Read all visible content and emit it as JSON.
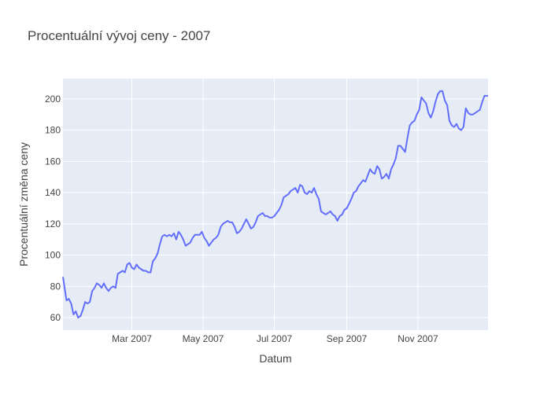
{
  "chart_data": {
    "type": "line",
    "title": "Procentuální vývoj ceny - 2007",
    "xlabel": "Datum",
    "ylabel": "Procentuální změna ceny",
    "xlim": [
      "2007-01-01",
      "2007-12-31"
    ],
    "ylim": [
      52,
      213
    ],
    "grid": true,
    "x_ticks": [
      {
        "date": "2007-03-01",
        "label": "Mar 2007"
      },
      {
        "date": "2007-05-01",
        "label": "May 2007"
      },
      {
        "date": "2007-07-01",
        "label": "Jul 2007"
      },
      {
        "date": "2007-09-01",
        "label": "Sep 2007"
      },
      {
        "date": "2007-11-01",
        "label": "Nov 2007"
      }
    ],
    "y_ticks": [
      60,
      80,
      100,
      120,
      140,
      160,
      180,
      200
    ],
    "line_color": "#636efa",
    "plot_bg": "#e5ecf6",
    "series": [
      {
        "x": [
          "2007-01-01",
          "2007-01-04",
          "2007-01-06",
          "2007-01-08",
          "2007-01-10",
          "2007-01-12",
          "2007-01-14",
          "2007-01-16",
          "2007-01-18",
          "2007-01-20",
          "2007-01-22",
          "2007-01-24",
          "2007-01-26",
          "2007-01-28",
          "2007-01-30",
          "2007-02-01",
          "2007-02-03",
          "2007-02-05",
          "2007-02-07",
          "2007-02-09",
          "2007-02-11",
          "2007-02-13",
          "2007-02-15",
          "2007-02-17",
          "2007-02-19",
          "2007-02-21",
          "2007-02-23",
          "2007-02-25",
          "2007-02-27",
          "2007-03-01",
          "2007-03-03",
          "2007-03-05",
          "2007-03-07",
          "2007-03-09",
          "2007-03-11",
          "2007-03-13",
          "2007-03-15",
          "2007-03-17",
          "2007-03-19",
          "2007-03-21",
          "2007-03-23",
          "2007-03-25",
          "2007-03-27",
          "2007-03-29",
          "2007-03-31",
          "2007-04-02",
          "2007-04-04",
          "2007-04-06",
          "2007-04-08",
          "2007-04-10",
          "2007-04-12",
          "2007-04-14",
          "2007-04-16",
          "2007-04-18",
          "2007-04-20",
          "2007-04-22",
          "2007-04-24",
          "2007-04-26",
          "2007-04-28",
          "2007-04-30",
          "2007-05-02",
          "2007-05-04",
          "2007-05-06",
          "2007-05-08",
          "2007-05-10",
          "2007-05-12",
          "2007-05-14",
          "2007-05-16",
          "2007-05-18",
          "2007-05-20",
          "2007-05-22",
          "2007-05-24",
          "2007-05-26",
          "2007-05-28",
          "2007-05-30",
          "2007-06-01",
          "2007-06-03",
          "2007-06-05",
          "2007-06-07",
          "2007-06-09",
          "2007-06-11",
          "2007-06-13",
          "2007-06-15",
          "2007-06-17",
          "2007-06-19",
          "2007-06-21",
          "2007-06-23",
          "2007-06-25",
          "2007-06-27",
          "2007-06-29",
          "2007-07-01",
          "2007-07-03",
          "2007-07-05",
          "2007-07-07",
          "2007-07-09",
          "2007-07-11",
          "2007-07-13",
          "2007-07-15",
          "2007-07-17",
          "2007-07-19",
          "2007-07-21",
          "2007-07-23",
          "2007-07-25",
          "2007-07-27",
          "2007-07-29",
          "2007-07-31",
          "2007-08-02",
          "2007-08-04",
          "2007-08-06",
          "2007-08-08",
          "2007-08-10",
          "2007-08-12",
          "2007-08-14",
          "2007-08-16",
          "2007-08-18",
          "2007-08-20",
          "2007-08-22",
          "2007-08-24",
          "2007-08-26",
          "2007-08-28",
          "2007-08-30",
          "2007-09-01",
          "2007-09-03",
          "2007-09-05",
          "2007-09-07",
          "2007-09-09",
          "2007-09-11",
          "2007-09-13",
          "2007-09-15",
          "2007-09-17",
          "2007-09-19",
          "2007-09-21",
          "2007-09-23",
          "2007-09-25",
          "2007-09-27",
          "2007-09-29",
          "2007-10-01",
          "2007-10-03",
          "2007-10-05",
          "2007-10-07",
          "2007-10-09",
          "2007-10-11",
          "2007-10-13",
          "2007-10-15",
          "2007-10-17",
          "2007-10-19",
          "2007-10-21",
          "2007-10-23",
          "2007-10-25",
          "2007-10-27",
          "2007-10-29",
          "2007-10-31",
          "2007-11-02",
          "2007-11-04",
          "2007-11-06",
          "2007-11-08",
          "2007-11-10",
          "2007-11-12",
          "2007-11-14",
          "2007-11-16",
          "2007-11-18",
          "2007-11-20",
          "2007-11-22",
          "2007-11-24",
          "2007-11-26",
          "2007-11-28",
          "2007-11-30",
          "2007-12-02",
          "2007-12-04",
          "2007-12-06",
          "2007-12-08",
          "2007-12-10",
          "2007-12-12",
          "2007-12-14",
          "2007-12-16",
          "2007-12-18",
          "2007-12-20",
          "2007-12-22",
          "2007-12-24",
          "2007-12-26",
          "2007-12-28",
          "2007-12-31"
        ],
        "y": [
          86,
          71,
          72,
          69,
          62,
          64,
          60,
          61,
          65,
          70,
          69,
          70,
          77,
          79,
          82,
          81,
          79,
          82,
          79,
          77,
          79,
          80,
          79,
          88,
          89,
          90,
          89,
          94,
          95,
          92,
          91,
          94,
          92,
          91,
          90,
          90,
          89,
          89,
          96,
          98,
          101,
          107,
          112,
          113,
          112,
          113,
          112,
          114,
          110,
          115,
          113,
          110,
          106,
          107,
          108,
          111,
          113,
          113,
          113,
          115,
          111,
          109,
          106,
          108,
          110,
          111,
          113,
          118,
          120,
          121,
          122,
          121,
          121,
          118,
          114,
          115,
          117,
          120,
          123,
          120,
          117,
          118,
          121,
          125,
          126,
          127,
          125,
          125,
          124,
          124,
          125,
          127,
          129,
          132,
          137,
          138,
          139,
          141,
          142,
          143,
          140,
          145,
          144,
          140,
          139,
          141,
          140,
          143,
          139,
          136,
          128,
          127,
          126,
          127,
          128,
          126,
          125,
          122,
          125,
          126,
          129,
          130,
          133,
          136,
          140,
          141,
          144,
          146,
          148,
          147,
          151,
          155,
          153,
          152,
          157,
          155,
          149,
          150,
          152,
          149,
          155,
          158,
          162,
          170,
          170,
          168,
          166,
          175,
          183,
          185,
          186,
          190,
          193,
          201,
          199,
          197,
          191,
          188,
          192,
          198,
          203,
          205,
          205,
          199,
          196,
          186,
          183,
          182,
          184,
          181,
          180,
          182,
          194,
          191,
          190,
          190,
          191,
          192,
          193,
          198,
          202,
          202
        ]
      }
    ]
  }
}
